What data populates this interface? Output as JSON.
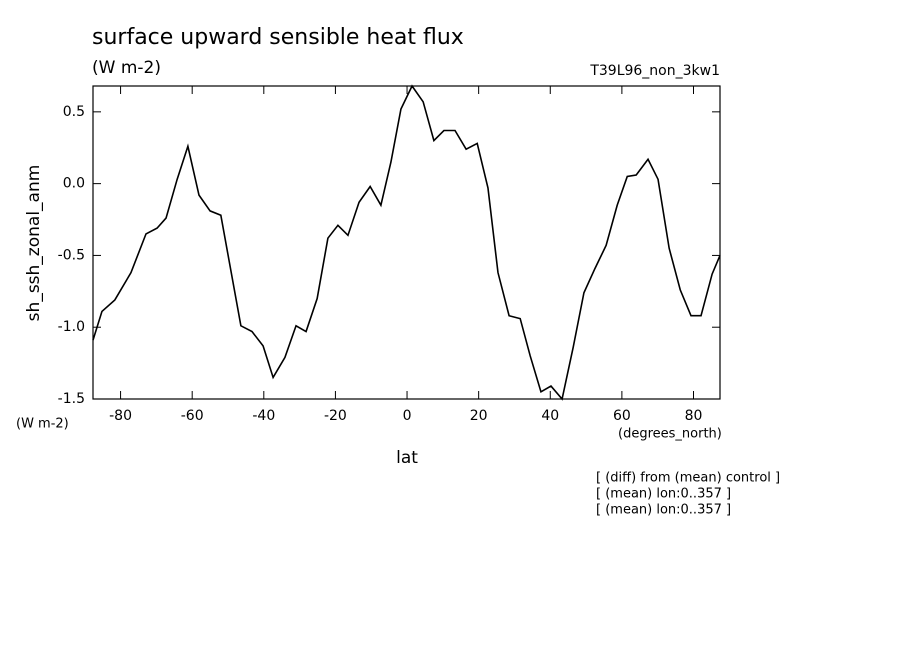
{
  "chart_data": {
    "type": "line",
    "title": "surface upward sensible heat flux",
    "subtitle": "(W m-2)",
    "run_label": "T39L96_non_3kw1",
    "y_label": "sh_ssh_zonal_anm",
    "y_units": "(W m-2)",
    "x_label": "lat",
    "x_units": "(degrees_north)",
    "notes": [
      "[ (diff) from (mean) control ]",
      "[ (mean) lon:0..357 ]",
      "[ (mean) lon:0..357 ]"
    ],
    "x": [
      -87.7,
      -85.2,
      -81.6,
      -77.1,
      -72.9,
      -69.8,
      -67.3,
      -64.2,
      -61.2,
      -58.1,
      -55.0,
      -52.0,
      -46.4,
      -43.3,
      -40.2,
      -37.4,
      -34.1,
      -31.0,
      -28.2,
      -25.1,
      -22.1,
      -19.3,
      -16.5,
      -13.4,
      -10.3,
      -7.3,
      -4.5,
      -1.7,
      1.4,
      4.5,
      7.5,
      10.3,
      13.4,
      16.5,
      19.6,
      22.6,
      25.4,
      28.5,
      31.6,
      34.4,
      37.4,
      40.2,
      43.3,
      46.4,
      49.4,
      52.5,
      55.6,
      58.7,
      61.5,
      64.0,
      67.3,
      70.1,
      73.2,
      76.3,
      79.3,
      82.1,
      85.2,
      87.4
    ],
    "series": [
      {
        "name": "sh_ssh_zonal_anm",
        "color": "#000000",
        "values": [
          -1.09,
          -0.89,
          -0.81,
          -0.62,
          -0.35,
          -0.31,
          -0.24,
          0.03,
          0.26,
          -0.08,
          -0.19,
          -0.22,
          -0.99,
          -1.03,
          -1.13,
          -1.35,
          -1.21,
          -0.99,
          -1.03,
          -0.8,
          -0.38,
          -0.29,
          -0.36,
          -0.13,
          -0.02,
          -0.15,
          0.15,
          0.52,
          0.68,
          0.57,
          0.3,
          0.37,
          0.37,
          0.24,
          0.28,
          -0.03,
          -0.62,
          -0.92,
          -0.94,
          -1.2,
          -1.45,
          -1.41,
          -1.5,
          -1.14,
          -0.76,
          -0.59,
          -0.43,
          -0.15,
          0.05,
          0.06,
          0.17,
          0.03,
          -0.45,
          -0.74,
          -0.92,
          -0.92,
          -0.63,
          -0.5
        ]
      }
    ],
    "xlim": [
      -87.7,
      87.4
    ],
    "ylim": [
      -1.5,
      0.68
    ],
    "xticks": [
      -80,
      -60,
      -40,
      -20,
      0,
      20,
      40,
      60,
      80
    ],
    "yticks": [
      -1.5,
      {
        "value": -1,
        "label": "-1.0"
      },
      -0.5,
      {
        "value": 0,
        "label": "0.0"
      },
      0.5
    ],
    "grid": false
  }
}
